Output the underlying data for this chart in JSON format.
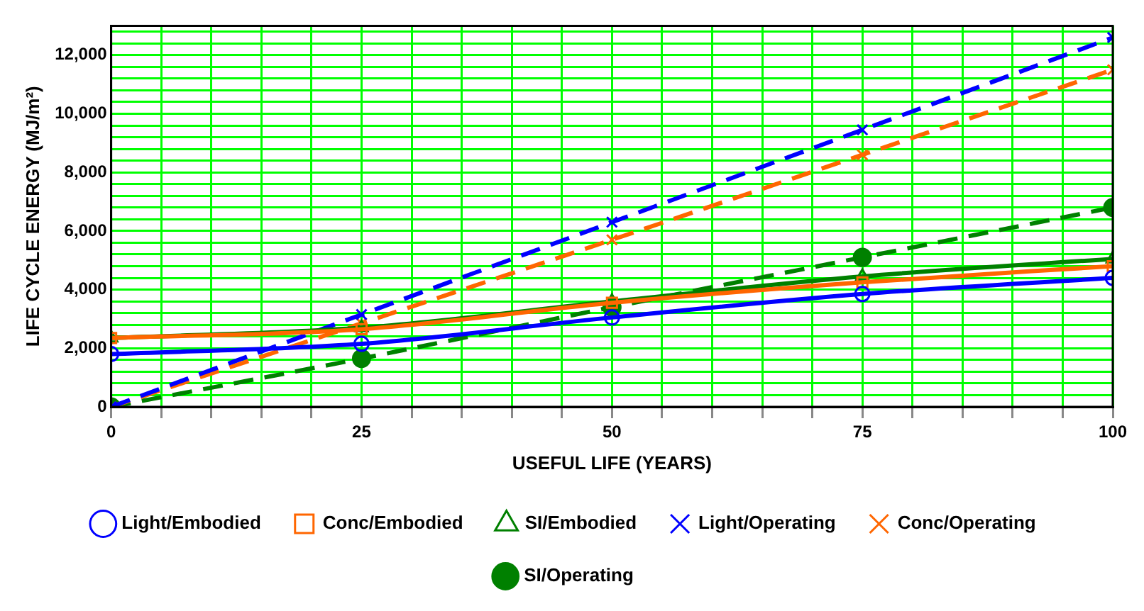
{
  "chart_data": {
    "type": "line",
    "xlabel": "USEFUL LIFE (YEARS)",
    "ylabel": "LIFE CYCLE ENERGY (MJ/m²)",
    "x": [
      0,
      25,
      50,
      75,
      100
    ],
    "series": [
      {
        "name": "Light/Embodied",
        "color": "#0000ff",
        "marker": "circle",
        "line_style": "solid",
        "values": [
          1800,
          2150,
          3050,
          3850,
          4400
        ]
      },
      {
        "name": "Conc/Embodied",
        "color": "#ff6600",
        "marker": "square",
        "line_style": "solid",
        "values": [
          2350,
          2650,
          3550,
          4250,
          4800
        ]
      },
      {
        "name": "SI/Embodied",
        "color": "#008000",
        "marker": "triangle",
        "line_style": "solid",
        "values": [
          2350,
          2700,
          3600,
          4450,
          5050
        ]
      },
      {
        "name": "Light/Operating",
        "color": "#0000ff",
        "marker": "cross",
        "line_style": "dashed",
        "values": [
          0,
          3150,
          6300,
          9450,
          12600
        ]
      },
      {
        "name": "Conc/Operating",
        "color": "#ff6600",
        "marker": "cross",
        "line_style": "dashed",
        "values": [
          0,
          2850,
          5700,
          8600,
          11500
        ]
      },
      {
        "name": "SI/Operating",
        "color": "#008000",
        "marker": "circle",
        "line_style": "dashed",
        "values": [
          0,
          1650,
          3400,
          5100,
          6800
        ]
      }
    ],
    "xlim": [
      0,
      100
    ],
    "xticks": [
      0,
      {
        "value": 5,
        "label": null
      },
      {
        "value": 10,
        "label": null
      },
      {
        "value": 15,
        "label": null
      },
      {
        "value": 20,
        "label": null
      },
      25,
      {
        "value": 30,
        "label": null
      },
      {
        "value": 35,
        "label": null
      },
      {
        "value": 40,
        "label": null
      },
      {
        "value": 45,
        "label": null
      },
      50,
      {
        "value": 55,
        "label": null
      },
      {
        "value": 60,
        "label": null
      },
      {
        "value": 65,
        "label": null
      },
      {
        "value": 70,
        "label": null
      },
      75,
      {
        "value": 80,
        "label": null
      },
      {
        "value": 85,
        "label": null
      },
      {
        "value": 90,
        "label": null
      },
      {
        "value": 95,
        "label": null
      },
      100
    ],
    "ylim": [
      0,
      13000
    ],
    "yticks": [
      {
        "value": 0,
        "label": "0"
      },
      {
        "value": 400,
        "label": null
      },
      {
        "value": 800,
        "label": null
      },
      {
        "value": 1200,
        "label": null
      },
      {
        "value": 1600,
        "label": null
      },
      {
        "value": 2000,
        "label": "2,000"
      },
      {
        "value": 2400,
        "label": null
      },
      {
        "value": 2800,
        "label": null
      },
      {
        "value": 3200,
        "label": null
      },
      {
        "value": 3600,
        "label": null
      },
      {
        "value": 4000,
        "label": "4,000"
      },
      {
        "value": 4400,
        "label": null
      },
      {
        "value": 4800,
        "label": null
      },
      {
        "value": 5200,
        "label": null
      },
      {
        "value": 5600,
        "label": null
      },
      {
        "value": 6000,
        "label": "6,000"
      },
      {
        "value": 6400,
        "label": null
      },
      {
        "value": 6800,
        "label": null
      },
      {
        "value": 7200,
        "label": null
      },
      {
        "value": 7600,
        "label": null
      },
      {
        "value": 8000,
        "label": "8,000"
      },
      {
        "value": 8400,
        "label": null
      },
      {
        "value": 8800,
        "label": null
      },
      {
        "value": 9200,
        "label": null
      },
      {
        "value": 9600,
        "label": null
      },
      {
        "value": 10000,
        "label": "10,000"
      },
      {
        "value": 10400,
        "label": null
      },
      {
        "value": 10800,
        "label": null
      },
      {
        "value": 11200,
        "label": null
      },
      {
        "value": 11600,
        "label": null
      },
      {
        "value": 12000,
        "label": "12,000"
      },
      {
        "value": 12400,
        "label": null
      },
      {
        "value": 12800,
        "label": null
      }
    ],
    "grid": true,
    "legend": "bottom"
  }
}
